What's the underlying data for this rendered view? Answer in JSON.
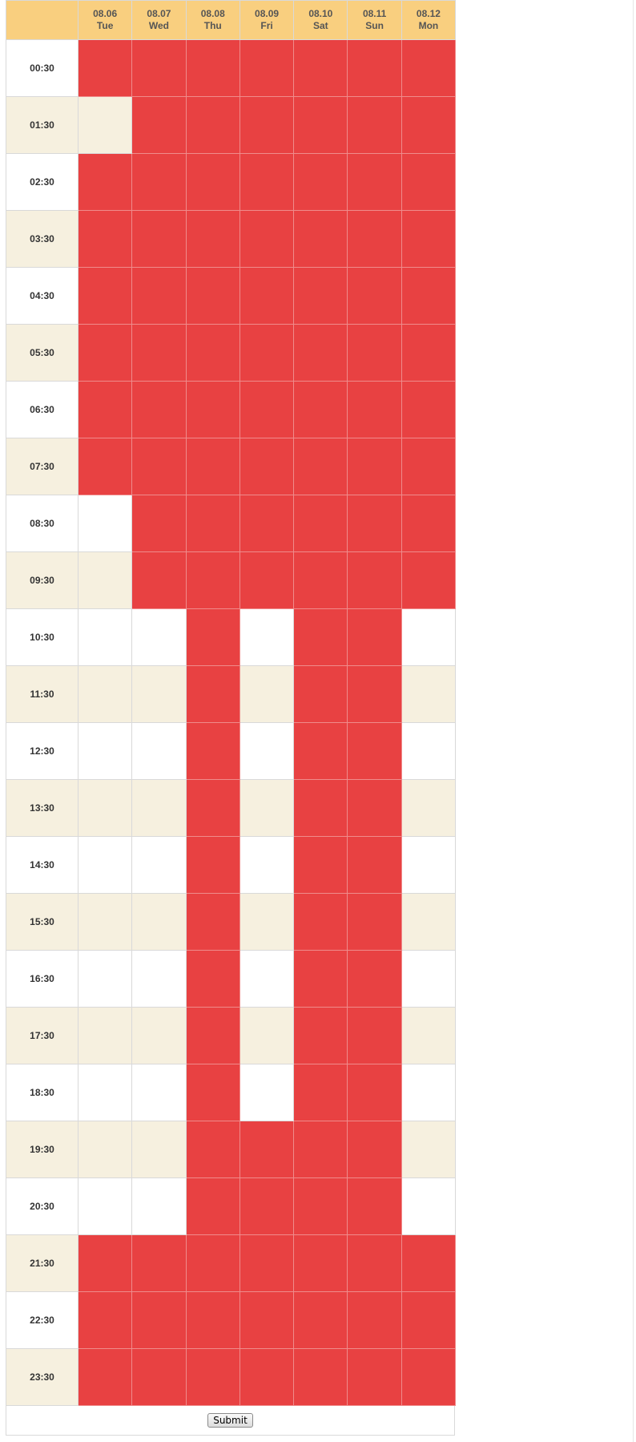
{
  "days": [
    {
      "date": "08.06",
      "weekday": "Tue"
    },
    {
      "date": "08.07",
      "weekday": "Wed"
    },
    {
      "date": "08.08",
      "weekday": "Thu"
    },
    {
      "date": "08.09",
      "weekday": "Fri"
    },
    {
      "date": "08.10",
      "weekday": "Sat"
    },
    {
      "date": "08.11",
      "weekday": "Sun"
    },
    {
      "date": "08.12",
      "weekday": "Mon"
    }
  ],
  "rows": [
    {
      "time": "00:30",
      "busy": [
        1,
        1,
        1,
        1,
        1,
        1,
        1
      ]
    },
    {
      "time": "01:30",
      "busy": [
        0,
        1,
        1,
        1,
        1,
        1,
        1
      ]
    },
    {
      "time": "02:30",
      "busy": [
        1,
        1,
        1,
        1,
        1,
        1,
        1
      ]
    },
    {
      "time": "03:30",
      "busy": [
        1,
        1,
        1,
        1,
        1,
        1,
        1
      ]
    },
    {
      "time": "04:30",
      "busy": [
        1,
        1,
        1,
        1,
        1,
        1,
        1
      ]
    },
    {
      "time": "05:30",
      "busy": [
        1,
        1,
        1,
        1,
        1,
        1,
        1
      ]
    },
    {
      "time": "06:30",
      "busy": [
        1,
        1,
        1,
        1,
        1,
        1,
        1
      ]
    },
    {
      "time": "07:30",
      "busy": [
        1,
        1,
        1,
        1,
        1,
        1,
        1
      ]
    },
    {
      "time": "08:30",
      "busy": [
        0,
        1,
        1,
        1,
        1,
        1,
        1
      ]
    },
    {
      "time": "09:30",
      "busy": [
        0,
        1,
        1,
        1,
        1,
        1,
        1
      ]
    },
    {
      "time": "10:30",
      "busy": [
        0,
        0,
        1,
        0,
        1,
        1,
        0
      ]
    },
    {
      "time": "11:30",
      "busy": [
        0,
        0,
        1,
        0,
        1,
        1,
        0
      ]
    },
    {
      "time": "12:30",
      "busy": [
        0,
        0,
        1,
        0,
        1,
        1,
        0
      ]
    },
    {
      "time": "13:30",
      "busy": [
        0,
        0,
        1,
        0,
        1,
        1,
        0
      ]
    },
    {
      "time": "14:30",
      "busy": [
        0,
        0,
        1,
        0,
        1,
        1,
        0
      ]
    },
    {
      "time": "15:30",
      "busy": [
        0,
        0,
        1,
        0,
        1,
        1,
        0
      ]
    },
    {
      "time": "16:30",
      "busy": [
        0,
        0,
        1,
        0,
        1,
        1,
        0
      ]
    },
    {
      "time": "17:30",
      "busy": [
        0,
        0,
        1,
        0,
        1,
        1,
        0
      ]
    },
    {
      "time": "18:30",
      "busy": [
        0,
        0,
        1,
        0,
        1,
        1,
        0
      ]
    },
    {
      "time": "19:30",
      "busy": [
        0,
        0,
        1,
        1,
        1,
        1,
        0
      ]
    },
    {
      "time": "20:30",
      "busy": [
        0,
        0,
        1,
        1,
        1,
        1,
        0
      ]
    },
    {
      "time": "21:30",
      "busy": [
        1,
        1,
        1,
        1,
        1,
        1,
        1
      ]
    },
    {
      "time": "22:30",
      "busy": [
        1,
        1,
        1,
        1,
        1,
        1,
        1
      ]
    },
    {
      "time": "23:30",
      "busy": [
        1,
        1,
        1,
        1,
        1,
        1,
        1
      ]
    }
  ],
  "submit_label": "Submit",
  "colors": {
    "busy": "#e84142",
    "header": "#f9cf7f",
    "stripe": "#f6f0df"
  }
}
